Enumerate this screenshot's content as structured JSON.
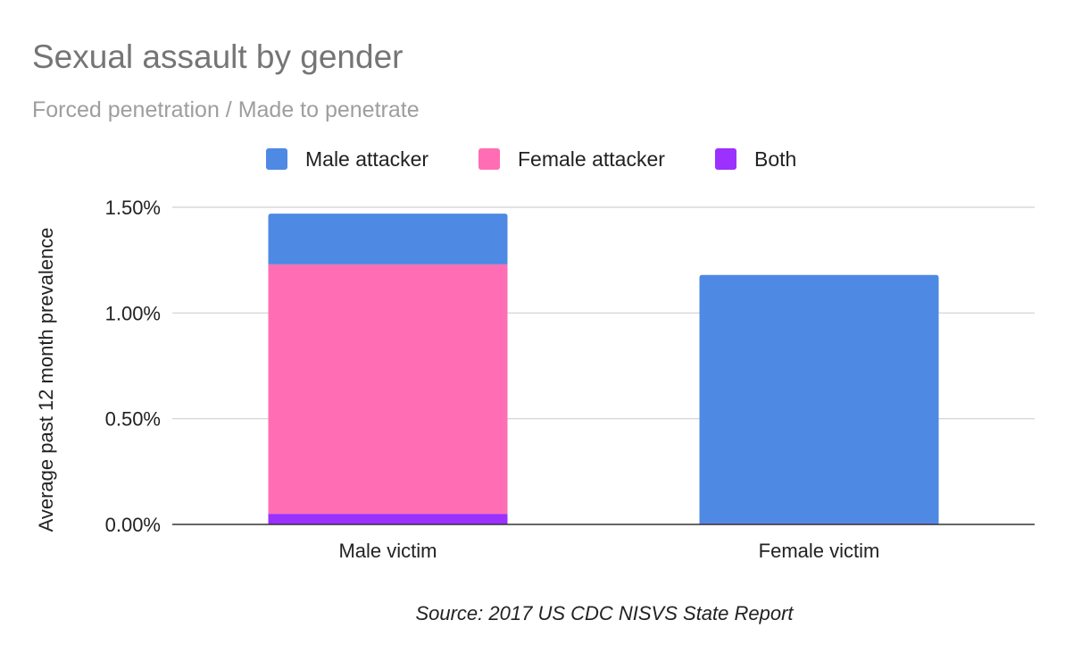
{
  "chart_data": {
    "type": "bar",
    "stacked": true,
    "title": "Sexual assault by gender",
    "subtitle": "Forced penetration / Made to penetrate",
    "ylabel": "Average past 12 month prevalence",
    "xlabel": "",
    "categories": [
      "Male victim",
      "Female victim"
    ],
    "series": [
      {
        "name": "Both",
        "color": "#9b30ff",
        "values": [
          0.05,
          0.005
        ]
      },
      {
        "name": "Female attacker",
        "color": "#ff6eb4",
        "values": [
          1.18,
          0
        ]
      },
      {
        "name": "Male attacker",
        "color": "#4e89e3",
        "values": [
          0.24,
          1.175
        ]
      }
    ],
    "legend": {
      "position": "top",
      "order": [
        "Male attacker",
        "Female attacker",
        "Both"
      ]
    },
    "ylim": [
      0,
      1.5
    ],
    "yticks": [
      "0.00%",
      "0.50%",
      "1.00%",
      "1.50%"
    ],
    "ytick_values": [
      0,
      0.5,
      1.0,
      1.5
    ],
    "grid": true,
    "annotation": "Source: 2017 US CDC NISVS State Report"
  }
}
